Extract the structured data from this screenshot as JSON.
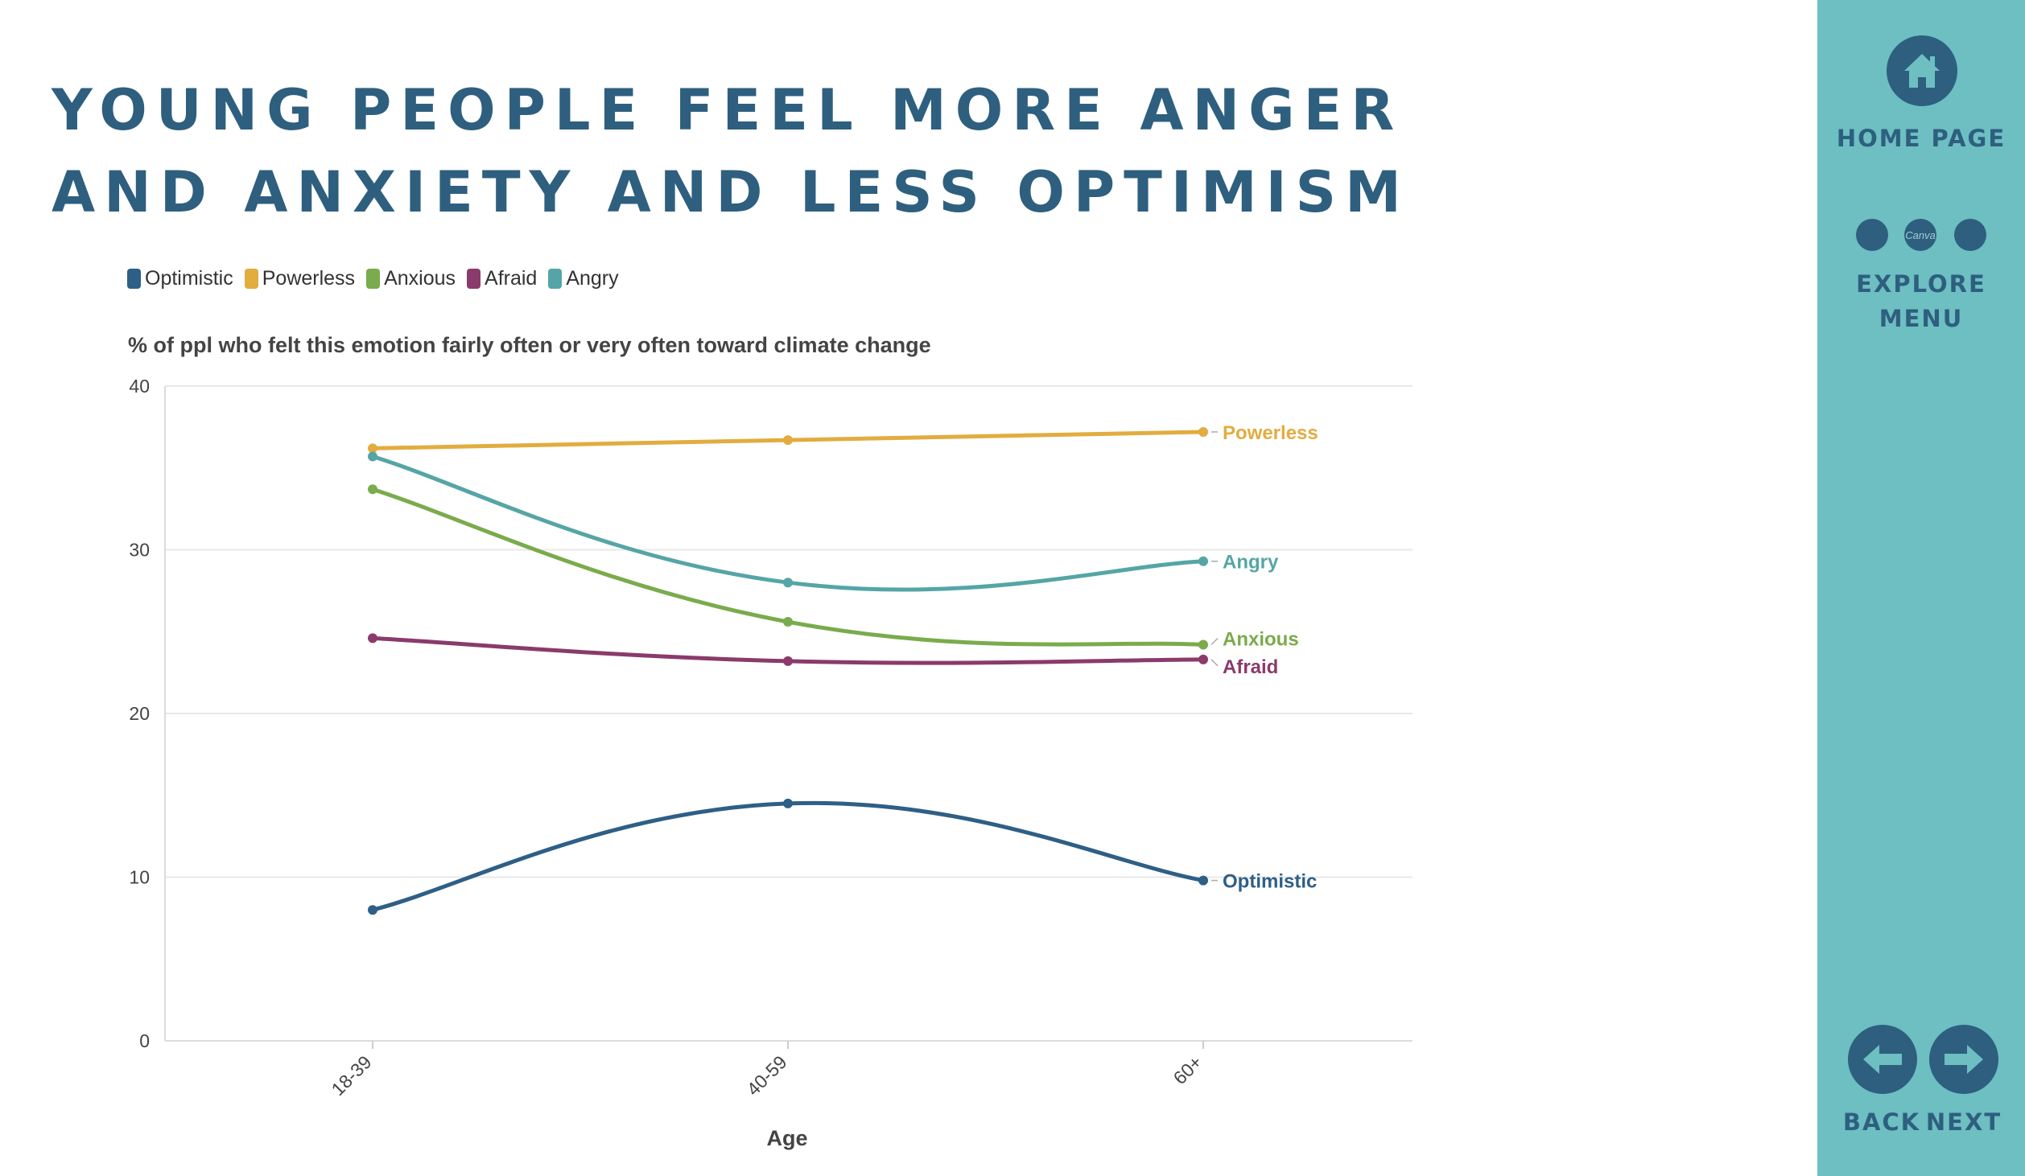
{
  "title": "Young people feel more anger and anxiety and less optimism",
  "chart_data": {
    "type": "line",
    "title": "% of ppl who felt this emotion fairly often or very often toward climate change",
    "xlabel": "Age",
    "ylabel": "",
    "categories": [
      "18-39",
      "40-59",
      "60+"
    ],
    "ylim": [
      0,
      40
    ],
    "yticks": [
      0,
      10,
      20,
      30,
      40
    ],
    "grid": true,
    "legend_position": "top-left",
    "series": [
      {
        "name": "Optimistic",
        "color": "#2e5f86",
        "values": [
          8.0,
          14.5,
          9.8
        ]
      },
      {
        "name": "Powerless",
        "color": "#e2ac3f",
        "values": [
          36.2,
          36.7,
          37.2
        ]
      },
      {
        "name": "Anxious",
        "color": "#7aab4c",
        "values": [
          33.7,
          25.6,
          24.2
        ]
      },
      {
        "name": "Afraid",
        "color": "#8a3a6b",
        "values": [
          24.6,
          23.2,
          23.3
        ]
      },
      {
        "name": "Angry",
        "color": "#56a5a6",
        "values": [
          35.7,
          28.0,
          29.3
        ]
      }
    ]
  },
  "sidebar": {
    "home_label": "HOME PAGE",
    "home_icon": "home-icon",
    "canva_mark": "Canva",
    "explore_label_1": "EXPLORE",
    "explore_label_2": "MENU",
    "back_label": "BACK",
    "next_label": "NEXT",
    "back_icon": "arrow-left-icon",
    "next_icon": "arrow-right-icon",
    "accent_color": "#6dbfc1",
    "icon_color": "#2e5f7f"
  }
}
